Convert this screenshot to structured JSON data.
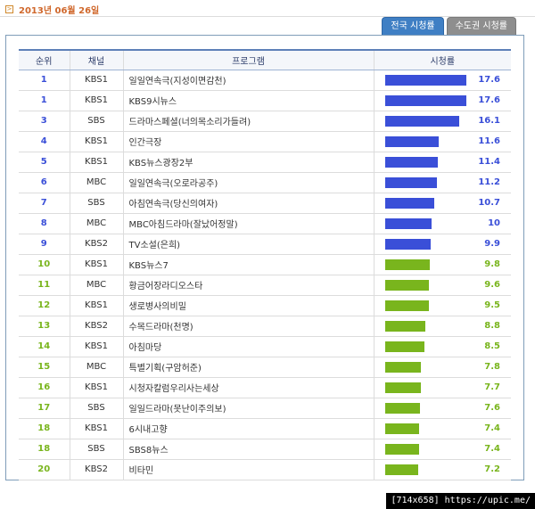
{
  "date": {
    "label": "2013년 06월 26일"
  },
  "tabs": [
    {
      "label": "전국 시청률",
      "active": true
    },
    {
      "label": "수도권 시청률",
      "active": false
    }
  ],
  "table": {
    "headers": {
      "rank": "순위",
      "channel": "채널",
      "program": "프로그램",
      "rating": "시청률"
    },
    "rating_scale_max": 20,
    "rows": [
      {
        "rank": "1",
        "channel": "KBS1",
        "program": "일일연속극(지성이면감천)",
        "rating": "17.6",
        "color": "#3a4fd8"
      },
      {
        "rank": "1",
        "channel": "KBS1",
        "program": "KBS9시뉴스",
        "rating": "17.6",
        "color": "#3a4fd8"
      },
      {
        "rank": "3",
        "channel": "SBS",
        "program": "드라마스페셜(너의목소리가들려)",
        "rating": "16.1",
        "color": "#3a4fd8"
      },
      {
        "rank": "4",
        "channel": "KBS1",
        "program": "인간극장",
        "rating": "11.6",
        "color": "#3a4fd8"
      },
      {
        "rank": "5",
        "channel": "KBS1",
        "program": "KBS뉴스광장2부",
        "rating": "11.4",
        "color": "#3a4fd8"
      },
      {
        "rank": "6",
        "channel": "MBC",
        "program": "일일연속극(오로라공주)",
        "rating": "11.2",
        "color": "#3a4fd8"
      },
      {
        "rank": "7",
        "channel": "SBS",
        "program": "아침연속극(당신의여자)",
        "rating": "10.7",
        "color": "#3a4fd8"
      },
      {
        "rank": "8",
        "channel": "MBC",
        "program": "MBC아침드라마(잘났어정말)",
        "rating": "10",
        "color": "#3a4fd8"
      },
      {
        "rank": "9",
        "channel": "KBS2",
        "program": "TV소설(은희)",
        "rating": "9.9",
        "color": "#3a4fd8"
      },
      {
        "rank": "10",
        "channel": "KBS1",
        "program": "KBS뉴스7",
        "rating": "9.8",
        "color": "#79b51d"
      },
      {
        "rank": "11",
        "channel": "MBC",
        "program": "황금어장라디오스타",
        "rating": "9.6",
        "color": "#79b51d"
      },
      {
        "rank": "12",
        "channel": "KBS1",
        "program": "생로병사의비밀",
        "rating": "9.5",
        "color": "#79b51d"
      },
      {
        "rank": "13",
        "channel": "KBS2",
        "program": "수목드라마(천명)",
        "rating": "8.8",
        "color": "#79b51d"
      },
      {
        "rank": "14",
        "channel": "KBS1",
        "program": "아침마당",
        "rating": "8.5",
        "color": "#79b51d"
      },
      {
        "rank": "15",
        "channel": "MBC",
        "program": "특별기획(구암허준)",
        "rating": "7.8",
        "color": "#79b51d"
      },
      {
        "rank": "16",
        "channel": "KBS1",
        "program": "시청자칼럼우리사는세상",
        "rating": "7.7",
        "color": "#79b51d"
      },
      {
        "rank": "17",
        "channel": "SBS",
        "program": "일일드라마(못난이주의보)",
        "rating": "7.6",
        "color": "#79b51d"
      },
      {
        "rank": "18",
        "channel": "KBS1",
        "program": "6시내고향",
        "rating": "7.4",
        "color": "#79b51d"
      },
      {
        "rank": "18",
        "channel": "SBS",
        "program": "SBS8뉴스",
        "rating": "7.4",
        "color": "#79b51d"
      },
      {
        "rank": "20",
        "channel": "KBS2",
        "program": "비타민",
        "rating": "7.2",
        "color": "#79b51d"
      }
    ]
  },
  "watermark": {
    "text": "[714x658] https://upic.me/"
  }
}
